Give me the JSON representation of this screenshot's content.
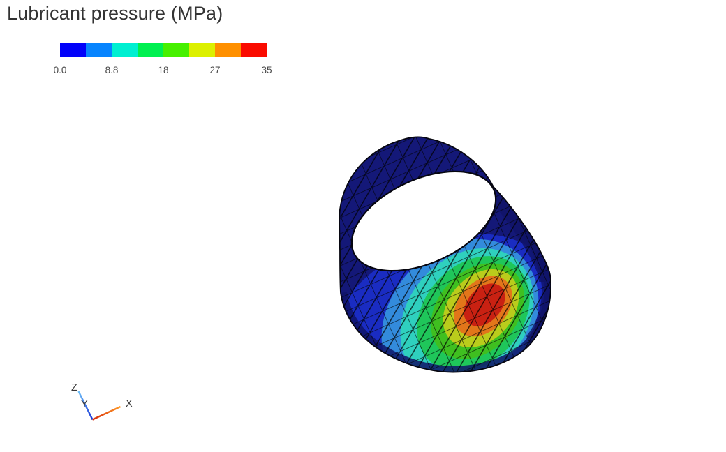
{
  "title": "Lubricant pressure (MPa)",
  "colorbar": {
    "labels": [
      "0.0",
      "8.8",
      "18",
      "27",
      "35"
    ],
    "colors": [
      "#0202fa",
      "#0784fe",
      "#00efd1",
      "#00f050",
      "#46f000",
      "#dcf000",
      "#ff9000",
      "#fa0b00"
    ],
    "min": 0.0,
    "max": 35,
    "units": "MPa"
  },
  "chart_data": {
    "type": "heatmap",
    "title": "Lubricant pressure (MPa)",
    "field": "Lubricant pressure",
    "units": "MPa",
    "range": [
      0.0,
      35
    ],
    "colorbar_ticks": [
      0.0,
      8.8,
      18,
      27,
      35
    ],
    "colormap_discrete": [
      "#0202fa",
      "#0784fe",
      "#00efd1",
      "#00f050",
      "#46f000",
      "#dcf000",
      "#ff9000",
      "#fa0b00"
    ],
    "geometry": "open cylinder shell (journal-bearing bore) with triangulated finite-element surface mesh",
    "peak": {
      "value": 35,
      "location": "inner surface, lower-right of bore"
    },
    "background_level": 0.0,
    "legend_position": "top-left",
    "orientation_axes": [
      "X",
      "Y",
      "Z"
    ]
  },
  "scene": {
    "surface_color": "#141878",
    "edge_color": "#06060f",
    "opening_color": "#ffffff",
    "bands": [
      {
        "name": "base-blue",
        "color": "#1a2cc2"
      },
      {
        "name": "dodger-blue",
        "color": "#338bdc"
      },
      {
        "name": "cyan",
        "color": "#2fd0be"
      },
      {
        "name": "spring-green",
        "color": "#1fc65a"
      },
      {
        "name": "lime-green",
        "color": "#3fbf20"
      },
      {
        "name": "yellow-green",
        "color": "#bacc1c"
      },
      {
        "name": "orange",
        "color": "#e2761a"
      },
      {
        "name": "red",
        "color": "#c92112"
      }
    ]
  },
  "triad": {
    "x_label": "X",
    "y_label": "Y",
    "z_label": "Z",
    "label_color": "#3a3a3a",
    "x_color_start": "#d42708",
    "x_color_end": "#ff9a28",
    "z_color_start": "#1733d6",
    "z_color_end": "#6fc0f8"
  }
}
